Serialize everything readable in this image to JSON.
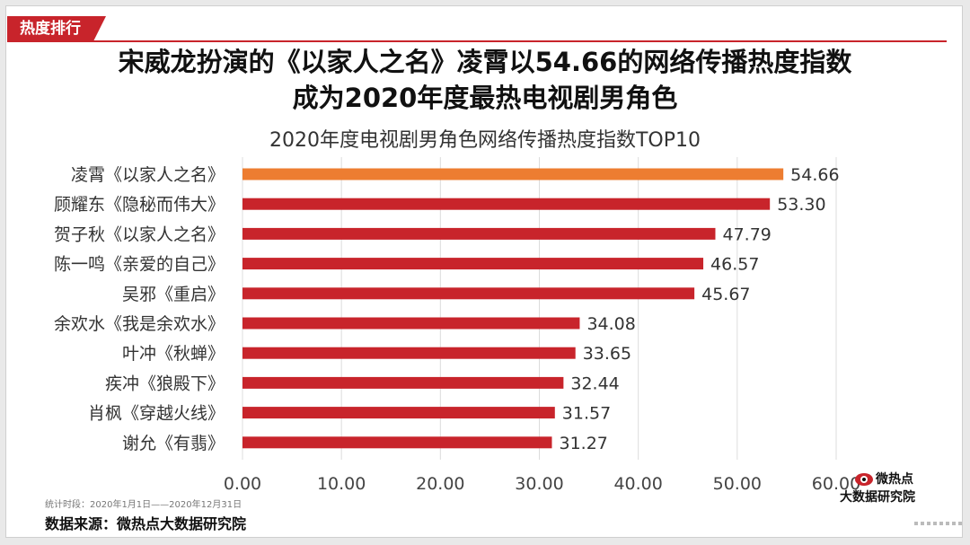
{
  "tag": {
    "label": "热度排行"
  },
  "headline": {
    "line1": "宋威龙扮演的《以家人之名》凌霄以54.66的网络传播热度指数",
    "line2": "成为2020年度最热电视剧男角色"
  },
  "footer": {
    "period": "统计时段：2020年1月1日——2020年12月31日",
    "source": "数据来源：微热点大数据研究院"
  },
  "brand": {
    "line1": "微热点",
    "line2": "大数据研究院",
    "icon": "weibo-eye-icon"
  },
  "colors": {
    "highlight": "#ed7d31",
    "bar": "#c8242b",
    "tag": "#c8242b"
  },
  "chart_data": {
    "type": "bar",
    "orientation": "horizontal",
    "title": "2020年度电视剧男角色网络传播热度指数TOP10",
    "categories": [
      "凌霄《以家人之名》",
      "顾耀东《隐秘而伟大》",
      "贺子秋《以家人之名》",
      "陈一鸣《亲爱的自己》",
      "吴邪《重启》",
      "余欢水《我是余欢水》",
      "叶冲《秋蝉》",
      "疾冲《狼殿下》",
      "肖枫《穿越火线》",
      "谢允《有翡》"
    ],
    "values": [
      54.66,
      53.3,
      47.79,
      46.57,
      45.67,
      34.08,
      33.65,
      32.44,
      31.57,
      31.27
    ],
    "value_labels": [
      "54.66",
      "53.30",
      "47.79",
      "46.57",
      "45.67",
      "34.08",
      "33.65",
      "32.44",
      "31.57",
      "31.27"
    ],
    "xlim": [
      0,
      60
    ],
    "xticks": [
      "0.00",
      "10.00",
      "20.00",
      "30.00",
      "40.00",
      "50.00",
      "60.00"
    ],
    "grid": true,
    "highlight_index": 0
  }
}
